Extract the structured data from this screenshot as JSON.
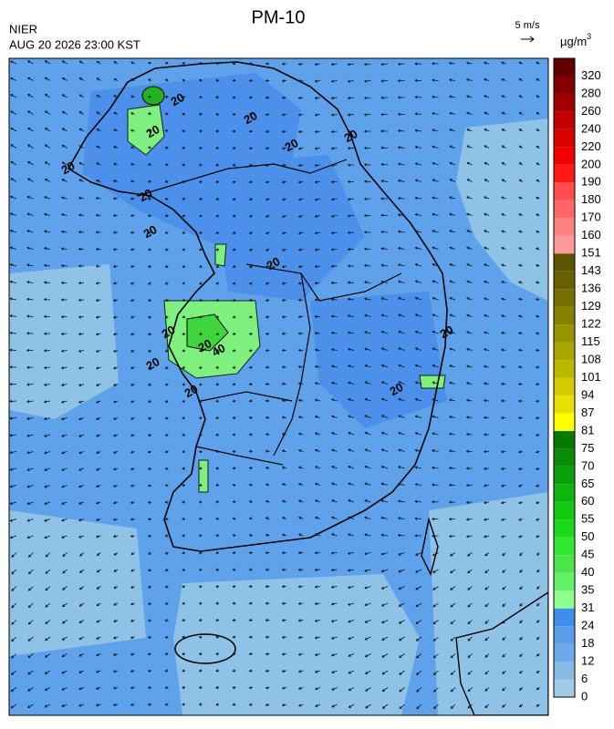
{
  "header": {
    "title": "PM-10",
    "agency": "NIER",
    "timestamp": "AUG 20 2026 23:00 KST",
    "wind_scale": "5 m/s",
    "unit": "µg/m",
    "unit_sup": "3"
  },
  "colorbar": {
    "labels": [
      "0",
      "6",
      "12",
      "18",
      "24",
      "31",
      "35",
      "40",
      "45",
      "50",
      "55",
      "60",
      "65",
      "70",
      "75",
      "81",
      "87",
      "94",
      "101",
      "108",
      "115",
      "122",
      "129",
      "136",
      "143",
      "151",
      "160",
      "170",
      "180",
      "190",
      "200",
      "220",
      "240",
      "260",
      "280",
      "320"
    ],
    "colors": [
      "#9fcbe6",
      "#86bbe8",
      "#6eaaea",
      "#5a9eea",
      "#3f8fe8",
      "#8cff8c",
      "#66f266",
      "#4ce64c",
      "#33e633",
      "#1ad91a",
      "#14c814",
      "#10b410",
      "#0ca00c",
      "#088c08",
      "#057a05",
      "#ffff00",
      "#e8e000",
      "#d2cc00",
      "#bcb800",
      "#aaa600",
      "#989400",
      "#868200",
      "#767000",
      "#685f00",
      "#5c5400",
      "#ff9a9a",
      "#ff8080",
      "#ff6666",
      "#ff4c4c",
      "#ff1a1a",
      "#f00000",
      "#d80000",
      "#c00000",
      "#a00000",
      "#800000",
      "#600000"
    ]
  },
  "contours": {
    "labels": [
      "20",
      "20",
      "20",
      "20",
      "20",
      "20",
      "20",
      "20",
      "20",
      "20",
      "20",
      "40",
      "20",
      "20",
      "20",
      "20"
    ]
  }
}
